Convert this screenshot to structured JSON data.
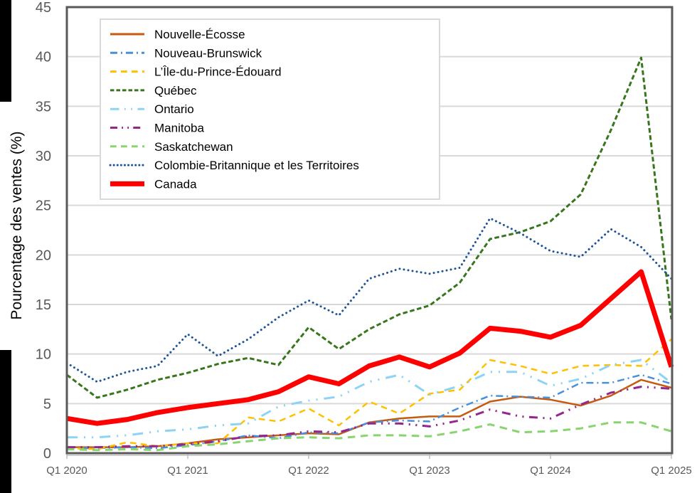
{
  "chart_data": {
    "type": "line",
    "title": "",
    "xlabel": "",
    "ylabel": "Pourcentage des ventes (%)",
    "ylim": [
      0,
      45
    ],
    "yticks": [
      0,
      5,
      10,
      15,
      20,
      25,
      30,
      35,
      40,
      45
    ],
    "xtick_labels": [
      "Q1 2020",
      "Q1 2021",
      "Q1 2022",
      "Q1 2023",
      "Q1 2024",
      "Q1 2025"
    ],
    "grid": true,
    "legend_position": "upper-left-inside",
    "x": [
      "Q1 2020",
      "Q2 2020",
      "Q3 2020",
      "Q4 2020",
      "Q1 2021",
      "Q2 2021",
      "Q3 2021",
      "Q4 2021",
      "Q1 2022",
      "Q2 2022",
      "Q3 2022",
      "Q4 2022",
      "Q1 2023",
      "Q2 2023",
      "Q3 2023",
      "Q4 2023",
      "Q1 2024",
      "Q2 2024",
      "Q3 2024",
      "Q4 2024",
      "Q1 2025"
    ],
    "series": [
      {
        "name": "Nouvelle-Écosse",
        "color": "#C55A11",
        "style": "solid",
        "width": 2.5,
        "values": [
          0.6,
          0.6,
          0.6,
          0.7,
          1.0,
          1.4,
          1.6,
          1.8,
          2.0,
          1.9,
          3.1,
          3.5,
          3.7,
          3.7,
          5.2,
          5.7,
          5.4,
          4.8,
          5.8,
          7.4,
          6.6
        ]
      },
      {
        "name": "Nouveau-Brunswick",
        "color": "#4A90D9",
        "style": "dashdot",
        "width": 2.5,
        "values": [
          0.5,
          0.5,
          0.6,
          0.5,
          0.8,
          1.2,
          1.8,
          1.5,
          2.1,
          2.0,
          3.1,
          3.3,
          3.2,
          4.6,
          5.8,
          5.7,
          5.6,
          7.1,
          7.1,
          7.9,
          7.0
        ]
      },
      {
        "name": "L’Île-du-Prince-Édouard",
        "color": "#FFC000",
        "style": "dash",
        "width": 2.5,
        "values": [
          0.5,
          0.4,
          1.1,
          0.7,
          1.0,
          1.0,
          3.6,
          3.2,
          4.5,
          2.8,
          5.2,
          4.0,
          6.0,
          6.4,
          9.4,
          8.8,
          8.0,
          8.8,
          8.9,
          8.8,
          11.5
        ]
      },
      {
        "name": "Québec",
        "color": "#38761D",
        "style": "shortdash",
        "width": 3,
        "values": [
          7.9,
          5.6,
          6.4,
          7.4,
          8.1,
          9.0,
          9.6,
          8.9,
          12.7,
          10.5,
          12.5,
          14.0,
          14.9,
          17.2,
          21.6,
          22.3,
          23.4,
          26.1,
          32.6,
          39.9,
          13.5
        ]
      },
      {
        "name": "Ontario",
        "color": "#8DD3F5",
        "style": "dashdotdot",
        "width": 3,
        "values": [
          1.6,
          1.6,
          1.8,
          2.2,
          2.4,
          2.8,
          3.0,
          4.7,
          5.3,
          5.7,
          7.2,
          7.9,
          5.9,
          6.8,
          8.2,
          8.2,
          6.8,
          7.5,
          8.9,
          9.4,
          7.1
        ]
      },
      {
        "name": "Manitoba",
        "color": "#93278F",
        "style": "longdashdotdot",
        "width": 3,
        "values": [
          0.6,
          0.6,
          0.7,
          0.7,
          0.9,
          1.2,
          1.7,
          1.8,
          2.2,
          2.1,
          3.0,
          3.0,
          2.7,
          3.3,
          4.4,
          3.7,
          3.5,
          4.9,
          6.1,
          6.7,
          6.5
        ]
      },
      {
        "name": "Saskatchewan",
        "color": "#88D46E",
        "style": "dash",
        "width": 3,
        "values": [
          0.4,
          0.3,
          0.4,
          0.3,
          0.7,
          0.9,
          1.2,
          1.5,
          1.6,
          1.5,
          1.8,
          1.8,
          1.7,
          2.2,
          2.9,
          2.1,
          2.2,
          2.5,
          3.1,
          3.1,
          2.2
        ]
      },
      {
        "name": "Colombie-Britannique  et les Territoires",
        "color": "#1F5596",
        "style": "dot",
        "width": 3,
        "values": [
          9.1,
          7.2,
          8.2,
          8.8,
          12.0,
          9.8,
          11.5,
          13.7,
          15.4,
          13.9,
          17.6,
          18.6,
          18.1,
          18.7,
          23.7,
          22.2,
          20.4,
          19.8,
          22.6,
          20.8,
          17.6
        ]
      },
      {
        "name": "Canada",
        "color": "#FF0000",
        "style": "solid",
        "width": 7,
        "values": [
          3.5,
          3.0,
          3.4,
          4.1,
          4.6,
          5.0,
          5.4,
          6.2,
          7.7,
          7.0,
          8.8,
          9.7,
          8.7,
          10.1,
          12.6,
          12.3,
          11.7,
          12.9,
          15.6,
          18.3,
          8.7
        ]
      }
    ]
  },
  "legend": {
    "items": [
      "Nouvelle-Écosse",
      "Nouveau-Brunswick",
      "L’Île-du-Prince-Édouard",
      "Québec",
      "Ontario",
      "Manitoba",
      "Saskatchewan",
      "Colombie-Britannique  et les Territoires",
      "Canada"
    ]
  },
  "axis": {
    "y_title": "Pourcentage des ventes (%)"
  },
  "colors": {
    "grid": "#D9D9D9",
    "frame": "#595959",
    "tick_text": "#595959"
  }
}
